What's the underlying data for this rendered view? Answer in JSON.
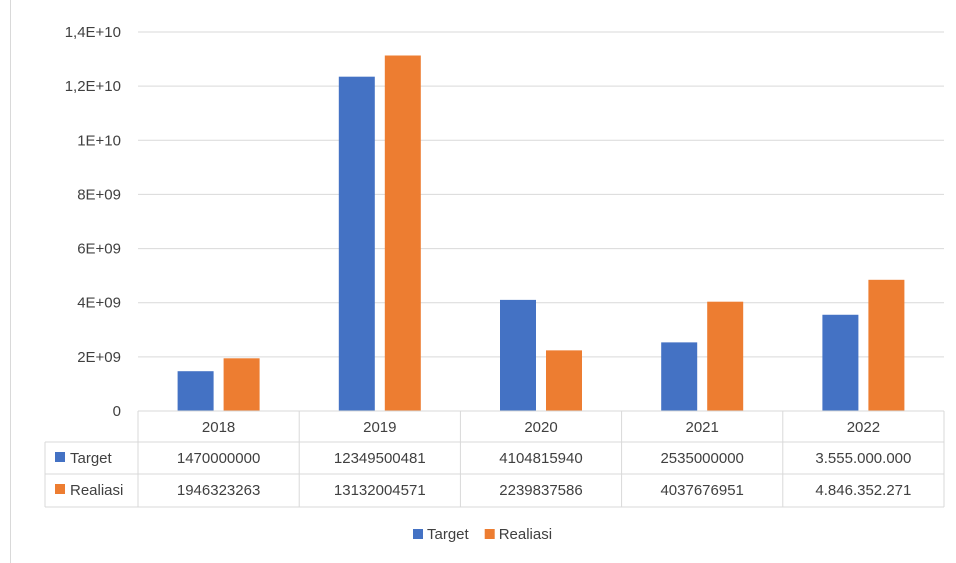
{
  "chart_data": {
    "type": "bar",
    "title": "",
    "xlabel": "",
    "ylabel": "",
    "categories": [
      "2018",
      "2019",
      "2020",
      "2021",
      "2022"
    ],
    "series": [
      {
        "name": "Target",
        "color": "#4472c4",
        "values": [
          1470000000,
          12349500481,
          4104815940,
          2535000000,
          3555000000
        ],
        "table_labels": [
          "1470000000",
          "12349500481",
          "4104815940",
          "2535000000",
          "3.555.000.000"
        ]
      },
      {
        "name": "Realiasi",
        "color": "#ed7d31",
        "values": [
          1946323263,
          13132004571,
          2239837586,
          4037676951,
          4846352271
        ],
        "table_labels": [
          "1946323263",
          "13132004571",
          "2239837586",
          "4037676951",
          "4.846.352.271"
        ]
      }
    ],
    "ylim": [
      0,
      14000000000
    ],
    "yticks": [
      {
        "value": 0,
        "label": "0"
      },
      {
        "value": 2000000000,
        "label": "2E+09"
      },
      {
        "value": 4000000000,
        "label": "4E+09"
      },
      {
        "value": 6000000000,
        "label": "6E+09"
      },
      {
        "value": 8000000000,
        "label": "8E+09"
      },
      {
        "value": 10000000000,
        "label": "1E+10"
      },
      {
        "value": 12000000000,
        "label": "1,2E+10"
      },
      {
        "value": 14000000000,
        "label": "1,4E+10"
      }
    ],
    "grid": true,
    "legend": "bottom",
    "data_table": true
  }
}
